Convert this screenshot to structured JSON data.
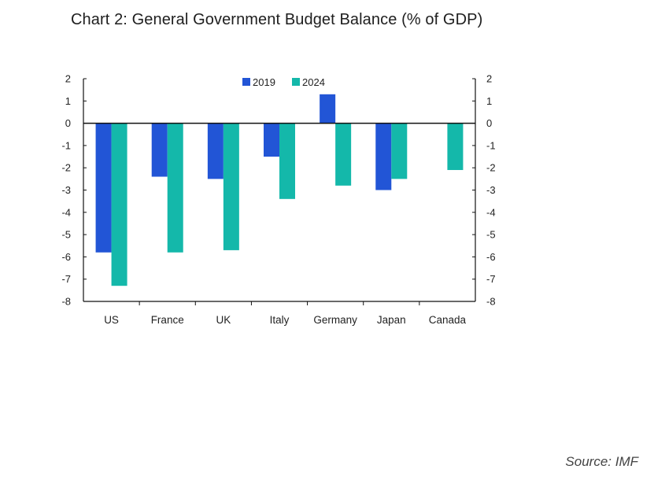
{
  "title": "Chart 2: General Government Budget Balance (% of GDP)",
  "source": "Source: IMF",
  "colors": {
    "s2019": "#2255d6",
    "s2024": "#14b8aa",
    "axis": "#111111"
  },
  "chart_data": {
    "type": "bar",
    "title": "Chart 2: General Government Budget Balance (% of GDP)",
    "xlabel": "",
    "ylabel": "",
    "ylim": [
      -8,
      2
    ],
    "yticks": [
      2,
      1,
      0,
      -1,
      -2,
      -3,
      -4,
      -5,
      -6,
      -7,
      -8
    ],
    "categories": [
      "US",
      "France",
      "UK",
      "Italy",
      "Germany",
      "Japan",
      "Canada"
    ],
    "series": [
      {
        "name": "2019",
        "values": [
          -5.8,
          -2.4,
          -2.5,
          -1.5,
          1.3,
          -3.0,
          null
        ]
      },
      {
        "name": "2024",
        "values": [
          -7.3,
          -5.8,
          -5.7,
          -3.4,
          -2.8,
          -2.5,
          -2.1
        ]
      }
    ],
    "legend_position": "top-center",
    "grid": false
  }
}
